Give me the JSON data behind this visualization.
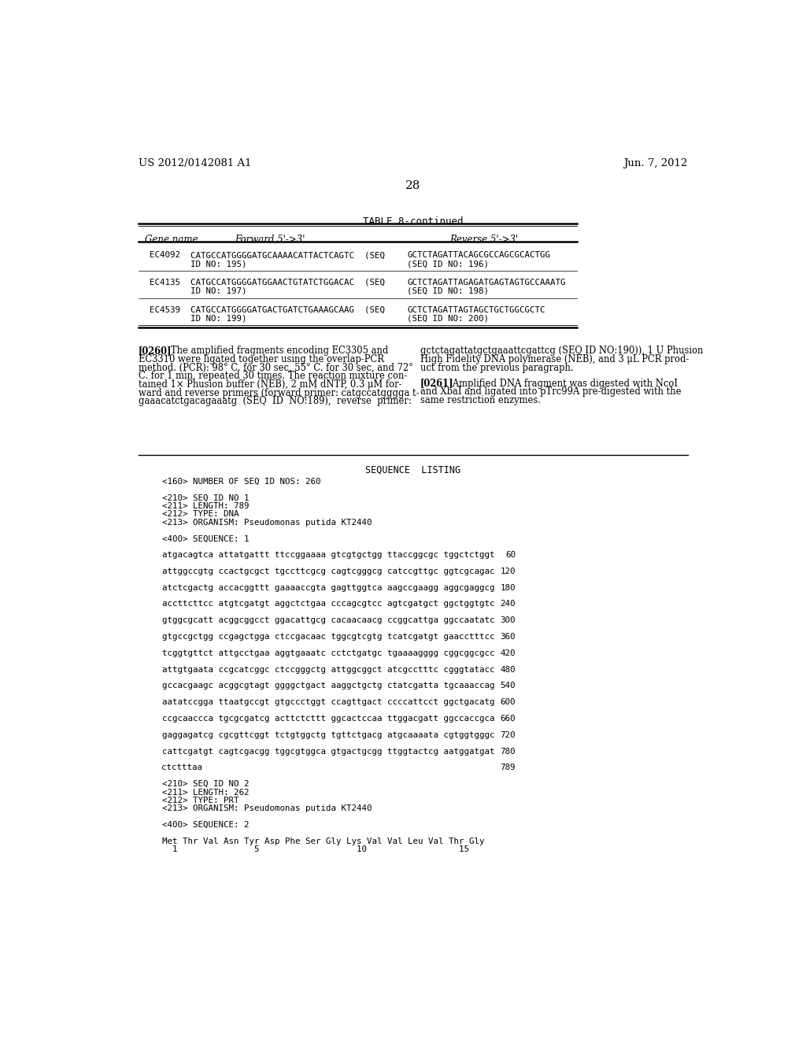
{
  "bg_color": "#ffffff",
  "header_left": "US 2012/0142081 A1",
  "header_right": "Jun. 7, 2012",
  "page_number": "28",
  "table_title": "TABLE 8-continued",
  "seq_listing_title": "SEQUENCE  LISTING",
  "seq_lines": [
    "<160> NUMBER OF SEQ ID NOS: 260",
    "",
    "<210> SEQ ID NO 1",
    "<211> LENGTH: 789",
    "<212> TYPE: DNA",
    "<213> ORGANISM: Pseudomonas putida KT2440",
    "",
    "<400> SEQUENCE: 1",
    "",
    "atgacagtca attatgattt ttccggaaaa gtcgtgctgg ttaccggcgc tggctctggt",
    "60",
    "",
    "attggccgtg ccactgcgct tgccttcgcg cagtcgggcg catccgttgc ggtcgcagac",
    "120",
    "",
    "atctcgactg accacggttt gaaaaccgta gagttggtca aagccgaagg aggcgaggcg",
    "180",
    "",
    "accttcttcc atgtcgatgt aggctctgaa cccagcgtcc agtcgatgct ggctggtgtc",
    "240",
    "",
    "gtggcgcatt acggcggcct ggacattgcg cacaacaacg ccggcattga ggccaatatc",
    "300",
    "",
    "gtgccgctgg ccgagctgga ctccgacaac tggcgtcgtg tcatcgatgt gaacctttcc",
    "360",
    "",
    "tcggtgttct attgcctgaa aggtgaaatc cctctgatgc tgaaaagggg cggcggcgcc",
    "420",
    "",
    "attgtgaata ccgcatcggc ctccgggctg attggcggct atcgcctttc cgggtatacc",
    "480",
    "",
    "gccacgaagc acggcgtagt ggggctgact aaggctgctg ctatcgatta tgcaaaccag",
    "540",
    "",
    "aatatccgga ttaatgccgt gtgccctggt ccagttgact ccccattcct ggctgacatg",
    "600",
    "",
    "ccgcaaccca tgcgcgatcg acttctcttt ggcactccaa ttggacgatt ggccaccgca",
    "660",
    "",
    "gaggagatcg cgcgttcggt tctgtggctg tgttctgacg atgcaaaata cgtggtgggc",
    "720",
    "",
    "cattcgatgt cagtcgacgg tggcgtggca gtgactgcgg ttggtactcg aatggatgat",
    "780",
    "",
    "ctctttaa",
    "789",
    "",
    "<210> SEQ ID NO 2",
    "<211> LENGTH: 262",
    "<212> TYPE: PRT",
    "<213> ORGANISM: Pseudomonas putida KT2440",
    "",
    "<400> SEQUENCE: 2",
    "",
    "Met Thr Val Asn Tyr Asp Phe Ser Gly Lys Val Val Leu Val Thr Gly",
    "  1               5                   10                  15"
  ]
}
